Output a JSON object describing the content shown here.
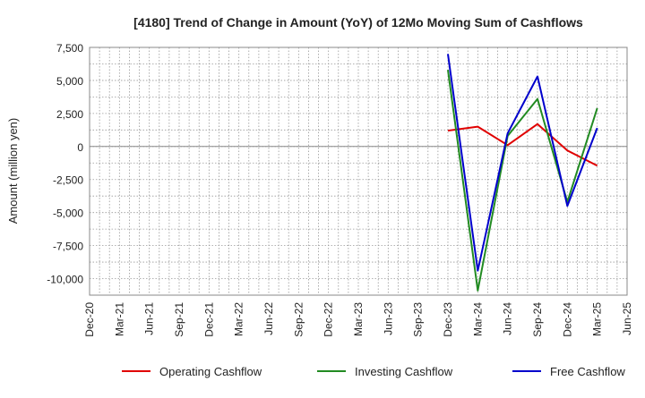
{
  "chart_data": {
    "type": "line",
    "title": "[4180]  Trend of Change in Amount (YoY) of 12Mo Moving Sum of Cashflows",
    "ylabel": "Amount (million yen)",
    "xlabel": "",
    "ylim": [
      -11250,
      7500
    ],
    "yticks": [
      7500,
      5000,
      2500,
      0,
      -2500,
      -5000,
      -7500,
      -10000
    ],
    "ytick_labels": [
      "7,500",
      "5,000",
      "2,500",
      "0",
      "-2,500",
      "-5,000",
      "-7,500",
      "-10,000"
    ],
    "xticks": [
      "Dec-20",
      "Mar-21",
      "Jun-21",
      "Sep-21",
      "Dec-21",
      "Mar-22",
      "Jun-22",
      "Sep-22",
      "Dec-22",
      "Mar-23",
      "Jun-23",
      "Sep-23",
      "Dec-23",
      "Mar-24",
      "Jun-24",
      "Sep-24",
      "Dec-24",
      "Mar-25",
      "Jun-25"
    ],
    "x": [
      "Dec-23",
      "Mar-24",
      "Jun-24",
      "Sep-24",
      "Dec-24",
      "Mar-25"
    ],
    "grid": true,
    "legend": "bottom",
    "series": [
      {
        "name": "Operating Cashflow",
        "color": "#e00000",
        "values": [
          1200,
          1500,
          100,
          1700,
          -300,
          -1450
        ]
      },
      {
        "name": "Investing Cashflow",
        "color": "#228b22",
        "values": [
          5800,
          -10900,
          800,
          3600,
          -4200,
          2900
        ]
      },
      {
        "name": "Free Cashflow",
        "color": "#0000cc",
        "values": [
          7000,
          -9400,
          1000,
          5300,
          -4500,
          1400
        ]
      }
    ]
  }
}
